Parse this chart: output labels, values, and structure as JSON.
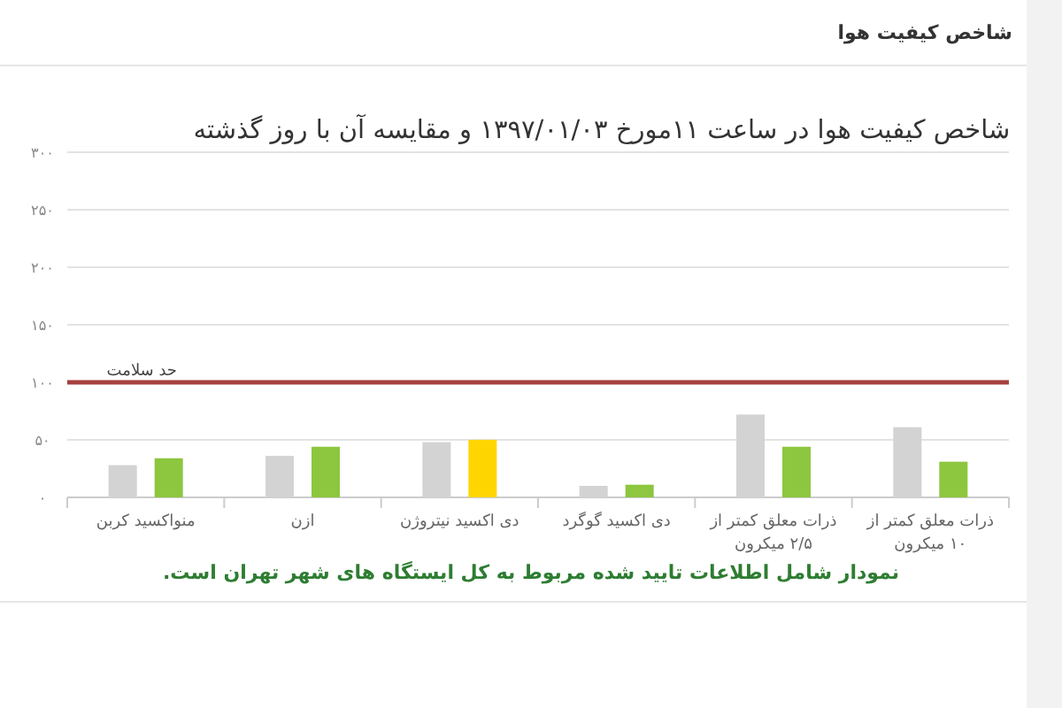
{
  "chart_data": {
    "type": "bar",
    "title": "شاخص کیفیت هوا در ساعت ۱۱مورخ ۱۳۹۷/۰۱/۰۳ و مقایسه آن با روز گذشته",
    "annotations": [
      "شاخص کیفیت هوا",
      "نمودار شامل اطلاعات تایید شده مربوط به کل ایستگاه های شهر تهران است."
    ],
    "categories": [
      "منواکسید کربن",
      "ازن",
      "دی اکسید نیتروژن",
      "دی اکسید گوگرد",
      "ذرات معلق کمتر از ۲/۵ میکرون",
      "ذرات معلق کمتر از ۱۰ میکرون"
    ],
    "series": [
      {
        "color": "#d3d3d3",
        "values": [
          28,
          36,
          48,
          10,
          72,
          61
        ]
      },
      {
        "colors": [
          "#8dc63f",
          "#8dc63f",
          "#ffd500",
          "#8dc63f",
          "#8dc63f",
          "#8dc63f"
        ],
        "values": [
          34,
          44,
          50,
          11,
          44,
          31
        ]
      }
    ],
    "ylim": [
      0,
      300
    ],
    "yticks": [
      {
        "value": 0,
        "label": "۰"
      },
      {
        "value": 50,
        "label": "۵۰"
      },
      {
        "value": 100,
        "label": "۱۰۰"
      },
      {
        "value": 150,
        "label": "۱۵۰"
      },
      {
        "value": 200,
        "label": "۲۰۰"
      },
      {
        "value": 250,
        "label": "۲۵۰"
      },
      {
        "value": 300,
        "label": "۳۰۰"
      }
    ],
    "grid": "y",
    "ref_lines": [
      {
        "axis": "y",
        "value": 100,
        "label": "حد سلامت",
        "color": "#a5403f"
      }
    ]
  }
}
